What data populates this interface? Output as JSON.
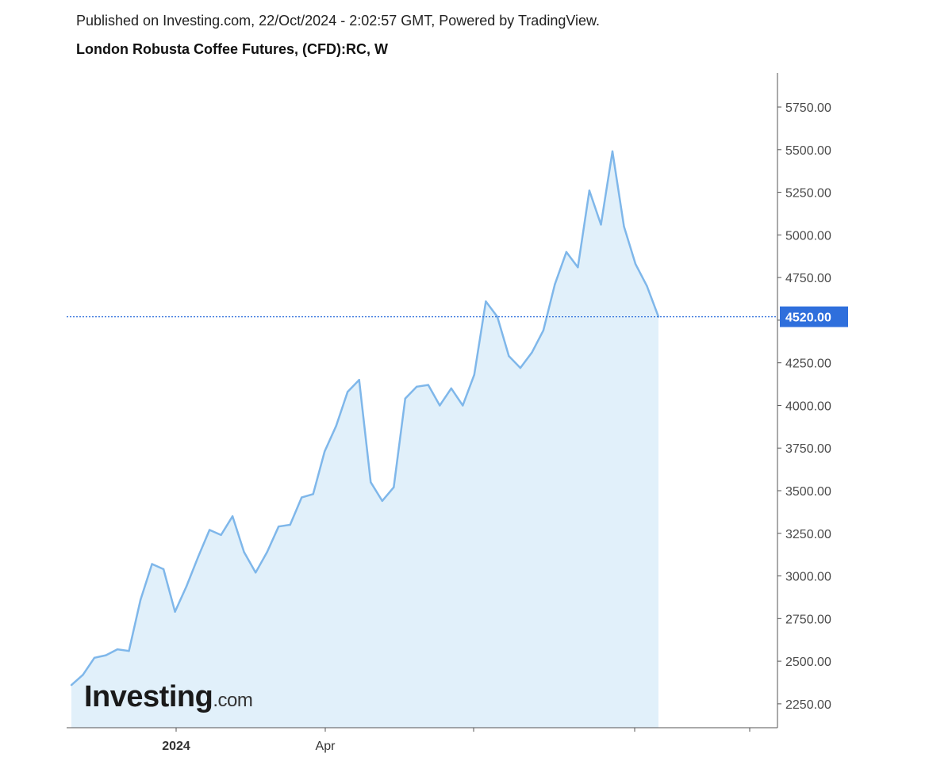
{
  "header": {
    "published": "Published on Investing.com, 22/Oct/2024 - 2:02:57 GMT, Powered by TradingView.",
    "title": "London Robusta Coffee Futures, (CFD):RC, W"
  },
  "logo": {
    "main": "Investing",
    "suffix": ".com"
  },
  "chart_data": {
    "type": "area",
    "title": "London Robusta Coffee Futures, (CFD):RC, W",
    "xlabel": "",
    "ylabel": "",
    "x_tick_labels": [
      "2024",
      "Apr"
    ],
    "y_ticks": [
      "2250.00",
      "2500.00",
      "2750.00",
      "3000.00",
      "3250.00",
      "3500.00",
      "3750.00",
      "4000.00",
      "4250.00",
      "4500.00",
      "4750.00",
      "5000.00",
      "5250.00",
      "5500.00",
      "5750.00"
    ],
    "ylim": [
      2110,
      5950
    ],
    "last_value": 4520,
    "last_value_label": "4520.00",
    "grid": false,
    "colors": {
      "line": "#7fb7ea",
      "fill": "#e1f0fa",
      "last_badge": "#2f6fdc",
      "dotted_line": "#2f6fdc"
    },
    "series": [
      {
        "values": [
          2360,
          2420,
          2520,
          2535,
          2570,
          2560,
          2860,
          3070,
          3040,
          2790,
          2940,
          3110,
          3270,
          3240,
          3350,
          3140,
          3020,
          3140,
          3290,
          3300,
          3460,
          3480,
          3730,
          3880,
          4080,
          4150,
          3550,
          3440,
          3520,
          4040,
          4110,
          4120,
          4000,
          4100,
          4000,
          4180,
          4610,
          4520,
          4290,
          4220,
          4310,
          4440,
          4710,
          4900,
          4810,
          5260,
          5060,
          5490,
          5050,
          4830,
          4700,
          4520
        ]
      }
    ]
  }
}
